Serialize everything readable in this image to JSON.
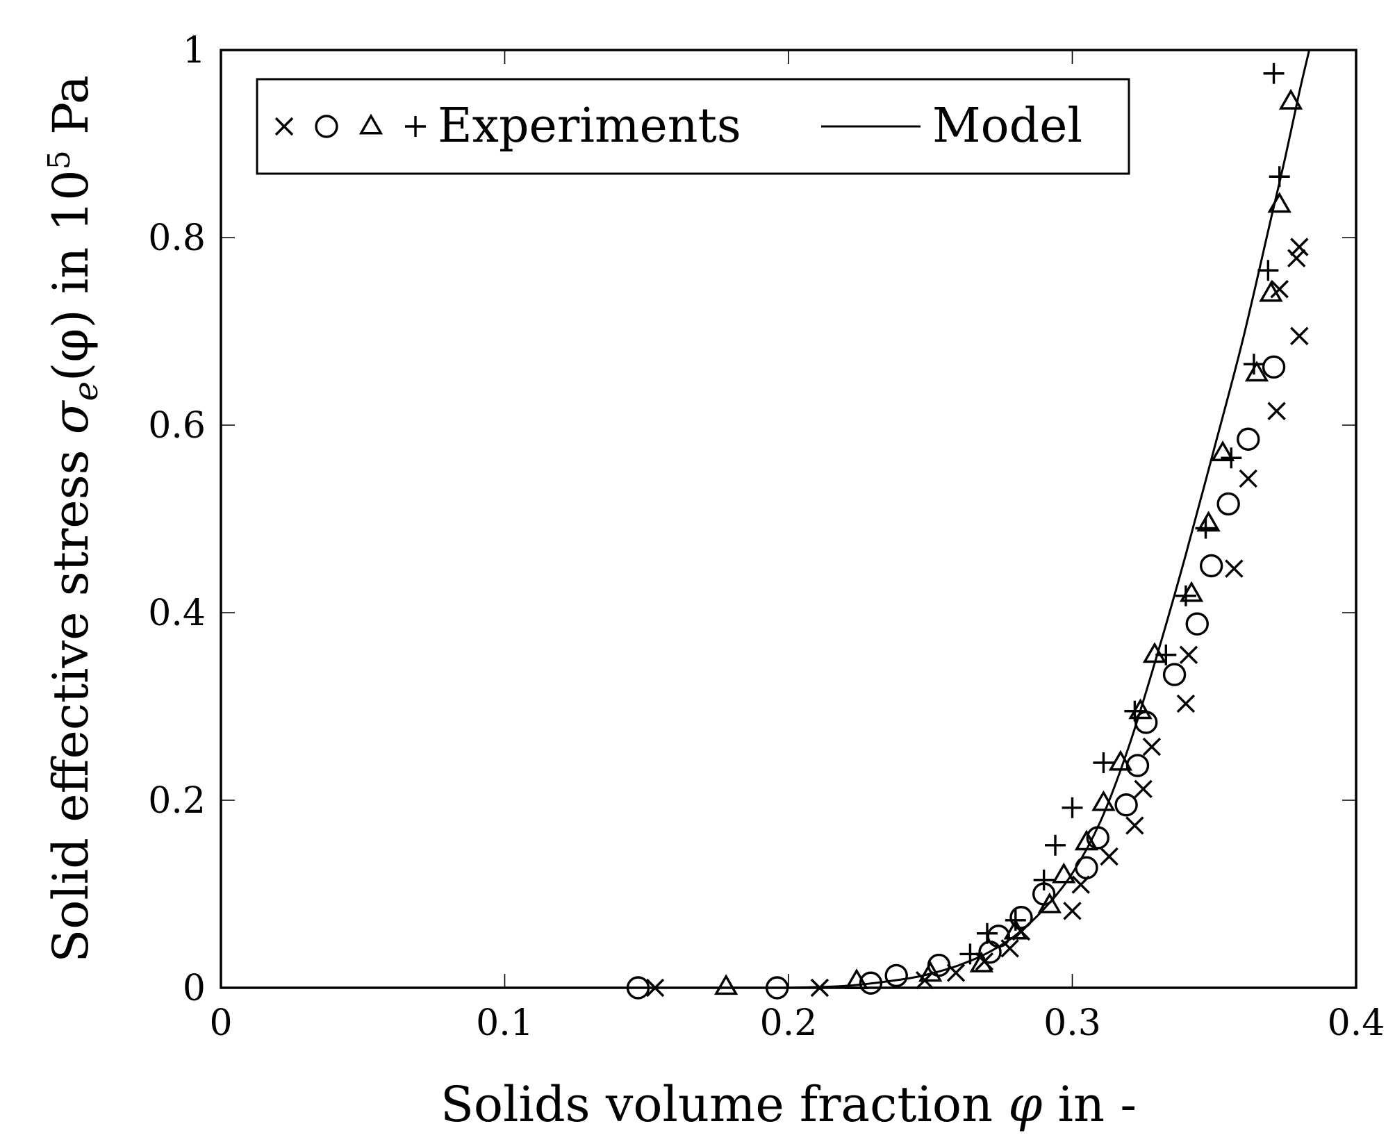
{
  "chart_data": {
    "type": "scatter",
    "title": "",
    "xlabel": "Solids volume fraction",
    "xlabel_symbol": "φ",
    "xlabel_suffix": "in -",
    "ylabel": "Solid effective stress",
    "ylabel_symbol": "σ",
    "ylabel_subscript": "e",
    "ylabel_arg": "(φ)",
    "ylabel_units_prefix": "in 10",
    "ylabel_units_exp": "5",
    "ylabel_units_suffix": "Pa",
    "xlim": [
      0,
      0.4
    ],
    "ylim": [
      0,
      1
    ],
    "xticks": [
      0,
      0.1,
      0.2,
      0.3,
      0.4
    ],
    "xtick_labels": [
      "0",
      "0.1",
      "0.2",
      "0.3",
      "0.4"
    ],
    "yticks": [
      0,
      0.2,
      0.4,
      0.6,
      0.8,
      1
    ],
    "ytick_labels": [
      "0",
      "0.2",
      "0.4",
      "0.6",
      "0.8",
      "1"
    ],
    "grid": false,
    "legend": {
      "placement": "top-left",
      "entries": [
        {
          "label": "Experiments",
          "markers": [
            "cross",
            "circle",
            "triangle",
            "plus"
          ]
        },
        {
          "label": "Model",
          "style": "line"
        }
      ]
    },
    "series": [
      {
        "name": "Experiments (×)",
        "marker": "cross",
        "points": [
          [
            0.153,
            0.0
          ],
          [
            0.211,
            0.0
          ],
          [
            0.248,
            0.008
          ],
          [
            0.259,
            0.016
          ],
          [
            0.269,
            0.028
          ],
          [
            0.278,
            0.042
          ],
          [
            0.282,
            0.06
          ],
          [
            0.3,
            0.082
          ],
          [
            0.303,
            0.11
          ],
          [
            0.313,
            0.14
          ],
          [
            0.322,
            0.173
          ],
          [
            0.325,
            0.212
          ],
          [
            0.328,
            0.257
          ],
          [
            0.34,
            0.303
          ],
          [
            0.341,
            0.355
          ],
          [
            0.357,
            0.447
          ],
          [
            0.362,
            0.543
          ],
          [
            0.372,
            0.615
          ],
          [
            0.38,
            0.695
          ],
          [
            0.379,
            0.778
          ],
          [
            0.38,
            0.79
          ],
          [
            0.373,
            0.745
          ]
        ]
      },
      {
        "name": "Experiments (○)",
        "marker": "circle",
        "points": [
          [
            0.147,
            0.0
          ],
          [
            0.196,
            0.0
          ],
          [
            0.229,
            0.005
          ],
          [
            0.238,
            0.013
          ],
          [
            0.253,
            0.024
          ],
          [
            0.271,
            0.038
          ],
          [
            0.274,
            0.055
          ],
          [
            0.282,
            0.075
          ],
          [
            0.29,
            0.1
          ],
          [
            0.305,
            0.128
          ],
          [
            0.309,
            0.16
          ],
          [
            0.319,
            0.195
          ],
          [
            0.323,
            0.237
          ],
          [
            0.326,
            0.283
          ],
          [
            0.336,
            0.334
          ],
          [
            0.344,
            0.388
          ],
          [
            0.349,
            0.45
          ],
          [
            0.355,
            0.516
          ],
          [
            0.362,
            0.585
          ],
          [
            0.371,
            0.662
          ]
        ]
      },
      {
        "name": "Experiments (△)",
        "marker": "triangle",
        "points": [
          [
            0.178,
            0.001
          ],
          [
            0.224,
            0.007
          ],
          [
            0.25,
            0.015
          ],
          [
            0.268,
            0.025
          ],
          [
            0.28,
            0.06
          ],
          [
            0.292,
            0.088
          ],
          [
            0.297,
            0.12
          ],
          [
            0.305,
            0.155
          ],
          [
            0.311,
            0.197
          ],
          [
            0.317,
            0.24
          ],
          [
            0.324,
            0.295
          ],
          [
            0.329,
            0.355
          ],
          [
            0.342,
            0.42
          ],
          [
            0.348,
            0.495
          ],
          [
            0.353,
            0.57
          ],
          [
            0.365,
            0.655
          ],
          [
            0.37,
            0.74
          ],
          [
            0.373,
            0.835
          ],
          [
            0.377,
            0.945
          ]
        ]
      },
      {
        "name": "Experiments (+)",
        "marker": "plus",
        "points": [
          [
            0.264,
            0.036
          ],
          [
            0.27,
            0.058
          ],
          [
            0.28,
            0.072
          ],
          [
            0.29,
            0.115
          ],
          [
            0.294,
            0.152
          ],
          [
            0.3,
            0.192
          ],
          [
            0.311,
            0.24
          ],
          [
            0.322,
            0.295
          ],
          [
            0.333,
            0.355
          ],
          [
            0.34,
            0.418
          ],
          [
            0.347,
            0.49
          ],
          [
            0.356,
            0.565
          ],
          [
            0.364,
            0.665
          ],
          [
            0.369,
            0.765
          ],
          [
            0.373,
            0.865
          ],
          [
            0.371,
            0.975
          ]
        ]
      },
      {
        "name": "Model",
        "style": "line",
        "points": [
          [
            0.2,
            0.0
          ],
          [
            0.22,
            0.002
          ],
          [
            0.24,
            0.009
          ],
          [
            0.25,
            0.015
          ],
          [
            0.26,
            0.024
          ],
          [
            0.27,
            0.037
          ],
          [
            0.28,
            0.056
          ],
          [
            0.29,
            0.084
          ],
          [
            0.3,
            0.122
          ],
          [
            0.31,
            0.178
          ],
          [
            0.32,
            0.258
          ],
          [
            0.33,
            0.356
          ],
          [
            0.34,
            0.462
          ],
          [
            0.35,
            0.575
          ],
          [
            0.36,
            0.69
          ],
          [
            0.37,
            0.82
          ],
          [
            0.375,
            0.885
          ],
          [
            0.38,
            0.955
          ],
          [
            0.3835,
            1.0
          ]
        ]
      }
    ]
  }
}
